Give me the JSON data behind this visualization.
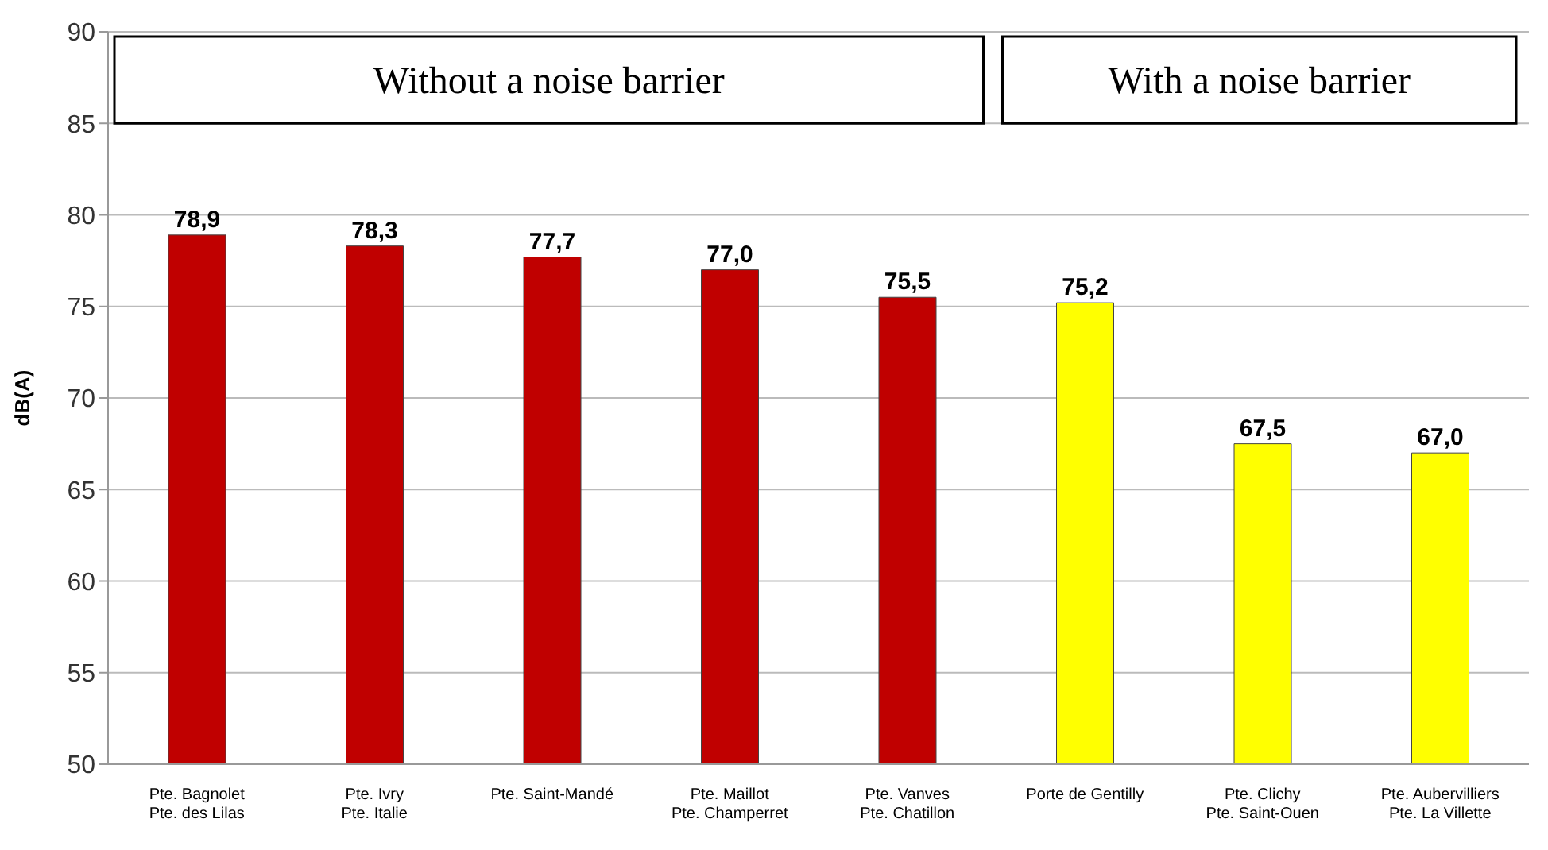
{
  "chart_data": {
    "type": "bar",
    "ylabel": "dB(A)",
    "categories": [
      "Pte. Bagnolet\nPte. des Lilas",
      "Pte. Ivry\nPte. Italie",
      "Pte. Saint-Mandé",
      "Pte. Maillot\nPte. Champerret",
      "Pte. Vanves\nPte. Chatillon",
      "Porte de Gentilly",
      "Pte. Clichy\nPte. Saint-Ouen",
      "Pte. Aubervilliers\nPte. La Villette"
    ],
    "values": [
      78.9,
      78.3,
      77.7,
      77.0,
      75.5,
      75.2,
      67.5,
      67.0
    ],
    "value_labels": [
      "78,9",
      "78,3",
      "77,7",
      "77,0",
      "75,5",
      "75,2",
      "67,5",
      "67,0"
    ],
    "colors": [
      "#c00000",
      "#c00000",
      "#c00000",
      "#c00000",
      "#c00000",
      "#ffff00",
      "#ffff00",
      "#ffff00"
    ],
    "ylim": [
      50,
      90
    ],
    "yticks": [
      50,
      55,
      60,
      65,
      70,
      75,
      80,
      85,
      90
    ],
    "grid": "y",
    "annotations": [
      "Without a noise barrier",
      "With a noise barrier"
    ]
  }
}
